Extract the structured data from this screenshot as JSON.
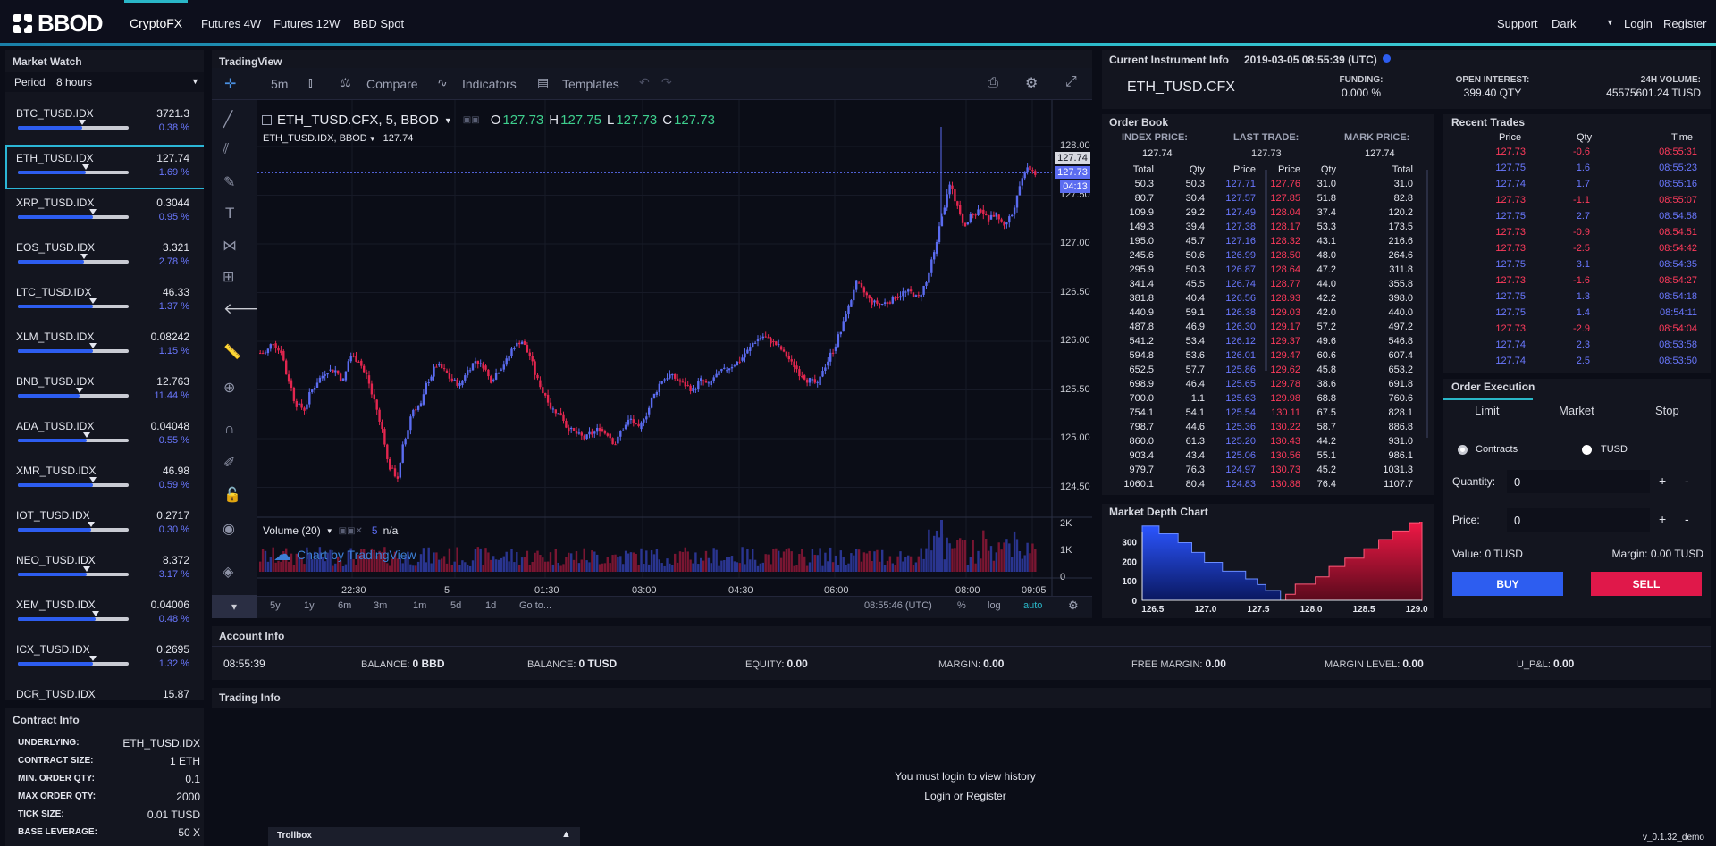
{
  "nav": {
    "brand": "BBOD",
    "items": [
      "CryptoFX",
      "Futures 4W",
      "Futures 12W",
      "BBD Spot"
    ],
    "right": {
      "support": "Support",
      "theme": "Dark",
      "login": "Login",
      "register": "Register"
    }
  },
  "market_watch": {
    "title": "Market Watch",
    "period_label": "Period",
    "period_value": "8 hours",
    "items": [
      {
        "symbol": "BTC_TUSD.IDX",
        "price": "3721.3",
        "change": "0.38 %",
        "level": 0.58
      },
      {
        "symbol": "ETH_TUSD.IDX",
        "price": "127.74",
        "change": "1.69 %",
        "level": 0.61
      },
      {
        "symbol": "XRP_TUSD.IDX",
        "price": "0.3044",
        "change": "0.95 %",
        "level": 0.68
      },
      {
        "symbol": "EOS_TUSD.IDX",
        "price": "3.321",
        "change": "2.78 %",
        "level": 0.6
      },
      {
        "symbol": "LTC_TUSD.IDX",
        "price": "46.33",
        "change": "1.37 %",
        "level": 0.68
      },
      {
        "symbol": "XLM_TUSD.IDX",
        "price": "0.08242",
        "change": "1.15 %",
        "level": 0.68
      },
      {
        "symbol": "BNB_TUSD.IDX",
        "price": "12.763",
        "change": "11.44 %",
        "level": 0.56
      },
      {
        "symbol": "ADA_TUSD.IDX",
        "price": "0.04048",
        "change": "0.55 %",
        "level": 0.62
      },
      {
        "symbol": "XMR_TUSD.IDX",
        "price": "46.98",
        "change": "0.59 %",
        "level": 0.68
      },
      {
        "symbol": "IOT_TUSD.IDX",
        "price": "0.2717",
        "change": "0.30 %",
        "level": 0.66
      },
      {
        "symbol": "NEO_TUSD.IDX",
        "price": "8.372",
        "change": "3.17 %",
        "level": 0.62
      },
      {
        "symbol": "XEM_TUSD.IDX",
        "price": "0.04006",
        "change": "0.48 %",
        "level": 0.7
      },
      {
        "symbol": "ICX_TUSD.IDX",
        "price": "0.2695",
        "change": "1.32 %",
        "level": 0.68
      },
      {
        "symbol": "DCR_TUSD.IDX",
        "price": "15.87",
        "change": "",
        "level": 0
      }
    ]
  },
  "contract_info": {
    "title": "Contract Info",
    "rows": [
      {
        "label": "UNDERLYING:",
        "value": "ETH_TUSD.IDX"
      },
      {
        "label": "CONTRACT SIZE:",
        "value": "1 ETH"
      },
      {
        "label": "MIN. ORDER QTY:",
        "value": "0.1"
      },
      {
        "label": "MAX ORDER QTY:",
        "value": "2000"
      },
      {
        "label": "TICK SIZE:",
        "value": "0.01 TUSD"
      },
      {
        "label": "BASE LEVERAGE:",
        "value": "50 X"
      }
    ]
  },
  "trading_view": {
    "title": "TradingView",
    "interval": "5m",
    "compare": "Compare",
    "indicators": "Indicators",
    "templates": "Templates",
    "symbol_line": "ETH_TUSD.CFX, 5, BBOD",
    "ohlc": {
      "o": "127.73",
      "h": "127.75",
      "l": "127.73",
      "c": "127.73"
    },
    "sub_symbol": "ETH_TUSD.IDX, BBOD",
    "sub_value": "127.74",
    "price_axis": [
      "128.00",
      "127.50",
      "127.00",
      "126.50",
      "126.00",
      "125.50",
      "125.00",
      "124.50"
    ],
    "price_tags": {
      "idx": "127.74",
      "last": "127.73",
      "countdown": "04:13"
    },
    "volume_label": "Volume (20)",
    "volume_value": "5",
    "volume_na": "n/a",
    "volume_axis": [
      "2K",
      "1K",
      "0"
    ],
    "watermark": "Chart by TradingView",
    "time_axis": [
      "22:30",
      "5",
      "01:30",
      "03:00",
      "04:30",
      "06:00",
      "08:00",
      "09:05"
    ],
    "ranges": [
      "5y",
      "1y",
      "6m",
      "3m",
      "1m",
      "5d",
      "1d",
      "Go to..."
    ],
    "clock": "08:55:46 (UTC)",
    "pct": "%",
    "log": "log",
    "auto": "auto",
    "candles": [
      125.88,
      125.98,
      125.9,
      125.6,
      125.35,
      125.3,
      125.5,
      125.62,
      125.7,
      125.7,
      125.6,
      125.85,
      125.8,
      125.65,
      125.4,
      125.1,
      124.7,
      124.6,
      125.0,
      125.3,
      125.35,
      125.6,
      125.75,
      125.7,
      125.6,
      125.55,
      125.7,
      125.8,
      125.75,
      125.6,
      125.7,
      125.8,
      125.95,
      126.0,
      125.85,
      125.6,
      125.45,
      125.3,
      125.25,
      125.1,
      125.05,
      125.0,
      125.05,
      125.1,
      125.05,
      124.95,
      125.1,
      125.2,
      125.1,
      125.25,
      125.45,
      125.6,
      125.65,
      125.6,
      125.55,
      125.5,
      125.6,
      125.55,
      125.65,
      125.7,
      125.75,
      125.8,
      125.9,
      126.0,
      126.05,
      126.0,
      125.95,
      125.85,
      125.75,
      125.65,
      125.6,
      125.55,
      125.75,
      125.9,
      126.1,
      126.35,
      126.6,
      126.5,
      126.4,
      126.38,
      126.4,
      126.45,
      126.5,
      126.5,
      126.45,
      126.6,
      126.9,
      127.3,
      127.6,
      127.4,
      127.2,
      127.3,
      127.35,
      127.25,
      127.3,
      127.2,
      127.3,
      127.6,
      127.8,
      127.73
    ]
  },
  "instrument": {
    "title": "Current Instrument Info",
    "datetime": "2019-03-05 08:55:39 (UTC)",
    "symbol": "ETH_TUSD.CFX",
    "funding_label": "FUNDING:",
    "funding_value": "0.000 %",
    "oi_label": "OPEN INTEREST:",
    "oi_value": "399.40 QTY",
    "vol_label": "24H VOLUME:",
    "vol_value": "45575601.24 TUSD"
  },
  "order_book": {
    "title": "Order Book",
    "index_label": "INDEX PRICE:",
    "index_value": "127.74",
    "last_label": "LAST TRADE:",
    "last_value": "127.73",
    "mark_label": "MARK PRICE:",
    "mark_value": "127.74",
    "headers": [
      "Total",
      "Qty",
      "Price",
      "Price",
      "Qty",
      "Total"
    ],
    "rows": [
      [
        "50.3",
        "50.3",
        "127.71",
        "127.76",
        "31.0",
        "31.0"
      ],
      [
        "80.7",
        "30.4",
        "127.57",
        "127.85",
        "51.8",
        "82.8"
      ],
      [
        "109.9",
        "29.2",
        "127.49",
        "128.04",
        "37.4",
        "120.2"
      ],
      [
        "149.3",
        "39.4",
        "127.38",
        "128.17",
        "53.3",
        "173.5"
      ],
      [
        "195.0",
        "45.7",
        "127.16",
        "128.32",
        "43.1",
        "216.6"
      ],
      [
        "245.6",
        "50.6",
        "126.99",
        "128.50",
        "48.0",
        "264.6"
      ],
      [
        "295.9",
        "50.3",
        "126.87",
        "128.64",
        "47.2",
        "311.8"
      ],
      [
        "341.4",
        "45.5",
        "126.74",
        "128.77",
        "44.0",
        "355.8"
      ],
      [
        "381.8",
        "40.4",
        "126.56",
        "128.93",
        "42.2",
        "398.0"
      ],
      [
        "440.9",
        "59.1",
        "126.38",
        "129.03",
        "42.0",
        "440.0"
      ],
      [
        "487.8",
        "46.9",
        "126.30",
        "129.17",
        "57.2",
        "497.2"
      ],
      [
        "541.2",
        "53.4",
        "126.12",
        "129.37",
        "49.6",
        "546.8"
      ],
      [
        "594.8",
        "53.6",
        "126.01",
        "129.47",
        "60.6",
        "607.4"
      ],
      [
        "652.5",
        "57.7",
        "125.86",
        "129.62",
        "45.8",
        "653.2"
      ],
      [
        "698.9",
        "46.4",
        "125.65",
        "129.78",
        "38.6",
        "691.8"
      ],
      [
        "700.0",
        "1.1",
        "125.63",
        "129.98",
        "68.8",
        "760.6"
      ],
      [
        "754.1",
        "54.1",
        "125.54",
        "130.11",
        "67.5",
        "828.1"
      ],
      [
        "798.7",
        "44.6",
        "125.36",
        "130.22",
        "58.7",
        "886.8"
      ],
      [
        "860.0",
        "61.3",
        "125.20",
        "130.43",
        "44.2",
        "931.0"
      ],
      [
        "903.4",
        "43.4",
        "125.06",
        "130.56",
        "55.1",
        "986.1"
      ],
      [
        "979.7",
        "76.3",
        "124.97",
        "130.73",
        "45.2",
        "1031.3"
      ],
      [
        "1060.1",
        "80.4",
        "124.83",
        "130.88",
        "76.4",
        "1107.7"
      ]
    ]
  },
  "recent_trades": {
    "title": "Recent Trades",
    "headers": [
      "Price",
      "Qty",
      "Time"
    ],
    "rows": [
      {
        "price": "127.73",
        "qty": "-0.6",
        "time": "08:55:31",
        "side": "sell"
      },
      {
        "price": "127.75",
        "qty": "1.6",
        "time": "08:55:23",
        "side": "buy"
      },
      {
        "price": "127.74",
        "qty": "1.7",
        "time": "08:55:16",
        "side": "buy"
      },
      {
        "price": "127.73",
        "qty": "-1.1",
        "time": "08:55:07",
        "side": "sell"
      },
      {
        "price": "127.75",
        "qty": "2.7",
        "time": "08:54:58",
        "side": "buy"
      },
      {
        "price": "127.73",
        "qty": "-0.9",
        "time": "08:54:51",
        "side": "sell"
      },
      {
        "price": "127.73",
        "qty": "-2.5",
        "time": "08:54:42",
        "side": "sell"
      },
      {
        "price": "127.75",
        "qty": "3.1",
        "time": "08:54:35",
        "side": "buy"
      },
      {
        "price": "127.73",
        "qty": "-1.6",
        "time": "08:54:27",
        "side": "sell"
      },
      {
        "price": "127.75",
        "qty": "1.3",
        "time": "08:54:18",
        "side": "buy"
      },
      {
        "price": "127.75",
        "qty": "1.4",
        "time": "08:54:11",
        "side": "buy"
      },
      {
        "price": "127.73",
        "qty": "-2.9",
        "time": "08:54:04",
        "side": "sell"
      },
      {
        "price": "127.74",
        "qty": "2.3",
        "time": "08:53:58",
        "side": "buy"
      },
      {
        "price": "127.74",
        "qty": "2.5",
        "time": "08:53:50",
        "side": "buy"
      }
    ]
  },
  "order_exec": {
    "title": "Order Execution",
    "tabs": [
      "Limit",
      "Market",
      "Stop"
    ],
    "radio_contracts": "Contracts",
    "radio_tusd": "TUSD",
    "quantity_label": "Quantity:",
    "quantity_value": "0",
    "price_label": "Price:",
    "price_value": "0",
    "value_text": "Value: 0 TUSD",
    "margin_text": "Margin: 0.00 TUSD",
    "buy": "BUY",
    "sell": "SELL",
    "plus": "+",
    "minus": "-"
  },
  "depth_chart": {
    "title": "Market Depth Chart",
    "y_ticks": [
      "300",
      "200",
      "100",
      "0"
    ],
    "x_ticks": [
      "126.5",
      "127.0",
      "127.5",
      "128.0",
      "128.5",
      "129.0"
    ]
  },
  "account": {
    "title": "Account Info",
    "time": "08:55:39",
    "items": [
      {
        "label": "BALANCE:",
        "value": "0 BBD"
      },
      {
        "label": "BALANCE:",
        "value": "0 TUSD"
      },
      {
        "label": "EQUITY:",
        "value": "0.00"
      },
      {
        "label": "MARGIN:",
        "value": "0.00"
      },
      {
        "label": "FREE MARGIN:",
        "value": "0.00"
      },
      {
        "label": "MARGIN LEVEL:",
        "value": "0.00"
      },
      {
        "label": "U_P&L:",
        "value": "0.00"
      }
    ]
  },
  "trading_info": {
    "title": "Trading Info",
    "message": "You must login to view history",
    "login": "Login",
    "or": "or",
    "register": "Register"
  },
  "trollbox": "Trollbox",
  "version": "v_0.1.32_demo",
  "colors": {
    "accent": "#2ab7c8",
    "buy": "#2d5df0",
    "sell": "#e0184a",
    "up_candle": "#5b6cf0",
    "down_candle": "#e3264f"
  }
}
